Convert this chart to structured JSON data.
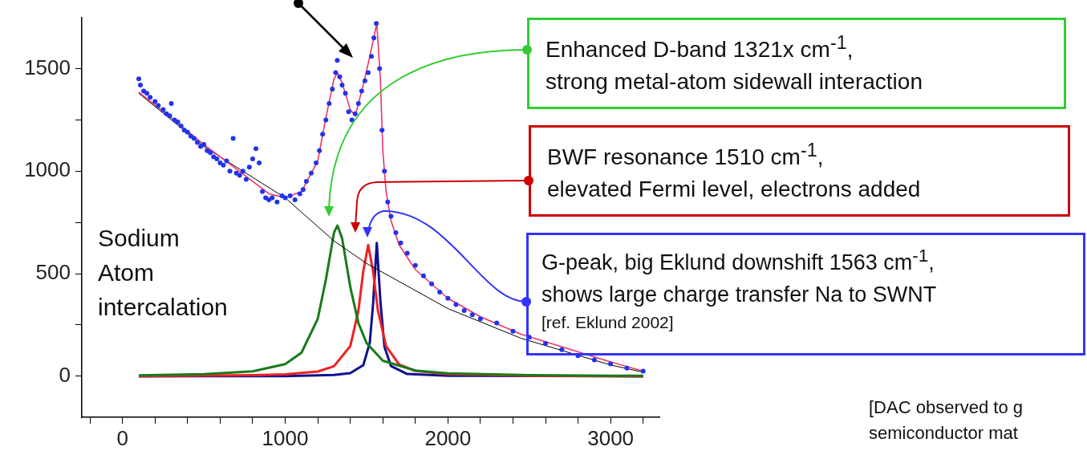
{
  "chart_data": {
    "type": "line",
    "xlim": [
      -250,
      3300
    ],
    "ylim": [
      -200,
      1750
    ],
    "xticks": [
      {
        "value": -200,
        "label": null
      },
      0,
      {
        "value": 200,
        "label": null
      },
      {
        "value": 400,
        "label": null
      },
      {
        "value": 600,
        "label": null
      },
      {
        "value": 800,
        "label": null
      },
      1000,
      {
        "value": 1200,
        "label": null
      },
      {
        "value": 1400,
        "label": null
      },
      {
        "value": 1600,
        "label": null
      },
      {
        "value": 1800,
        "label": null
      },
      2000,
      {
        "value": 2200,
        "label": null
      },
      {
        "value": 2400,
        "label": null
      },
      {
        "value": 2600,
        "label": null
      },
      {
        "value": 2800,
        "label": null
      },
      3000,
      {
        "value": 3200,
        "label": null
      }
    ],
    "yticks": [
      0,
      {
        "value": 250,
        "label": null
      },
      500,
      {
        "value": 750,
        "label": null
      },
      1000,
      {
        "value": 1250,
        "label": null
      },
      1500
    ],
    "grid": false,
    "legend": false,
    "series": [
      {
        "type": "scatter",
        "marker": "circle",
        "color": "#2233ee",
        "x": [
          100,
          110,
          130,
          150,
          170,
          200,
          220,
          250,
          270,
          290,
          300,
          320,
          340,
          360,
          380,
          400,
          420,
          440,
          460,
          480,
          500,
          520,
          540,
          560,
          580,
          600,
          620,
          640,
          660,
          680,
          700,
          720,
          740,
          760,
          780,
          800,
          820,
          840,
          860,
          880,
          900,
          920,
          950,
          980,
          1000,
          1030,
          1060,
          1090,
          1110,
          1130,
          1160,
          1190,
          1210,
          1230,
          1250,
          1270,
          1290,
          1310,
          1320,
          1335,
          1350,
          1370,
          1390,
          1410,
          1430,
          1450,
          1470,
          1490,
          1510,
          1530,
          1545,
          1560,
          1580,
          1595,
          1610,
          1630,
          1650,
          1680,
          1710,
          1750,
          1800,
          1850,
          1900,
          1950,
          2000,
          2050,
          2100,
          2150,
          2200,
          2300,
          2400,
          2500,
          2600,
          2700,
          2800,
          2900,
          3000,
          3100,
          3200
        ],
        "values": [
          1450,
          1420,
          1390,
          1380,
          1360,
          1340,
          1320,
          1300,
          1280,
          1270,
          1330,
          1250,
          1240,
          1220,
          1200,
          1190,
          1170,
          1160,
          1140,
          1120,
          1130,
          1100,
          1090,
          1070,
          1060,
          1040,
          1030,
          1050,
          1000,
          1160,
          990,
          980,
          1000,
          960,
          1020,
          1060,
          1110,
          1040,
          900,
          870,
          860,
          870,
          850,
          880,
          870,
          880,
          860,
          890,
          910,
          950,
          990,
          1040,
          1100,
          1180,
          1250,
          1330,
          1400,
          1480,
          1540,
          1460,
          1420,
          1380,
          1290,
          1250,
          1280,
          1330,
          1390,
          1440,
          1480,
          1560,
          1650,
          1720,
          1500,
          1200,
          1000,
          850,
          780,
          700,
          650,
          600,
          540,
          490,
          450,
          410,
          380,
          350,
          320,
          300,
          280,
          260,
          220,
          190,
          160,
          130,
          100,
          80,
          60,
          40,
          25
        ]
      },
      {
        "type": "line",
        "marker": "none",
        "color": "#ee3366",
        "x": [
          100,
          300,
          500,
          700,
          900,
          1000,
          1100,
          1200,
          1250,
          1300,
          1321,
          1350,
          1400,
          1430,
          1480,
          1520,
          1563,
          1585,
          1600,
          1620,
          1650,
          1700,
          1800,
          2000,
          2200,
          2450,
          3000,
          3200
        ],
        "values": [
          1385,
          1260,
          1130,
          1010,
          890,
          870,
          900,
          1050,
          1260,
          1450,
          1480,
          1430,
          1300,
          1270,
          1420,
          1560,
          1720,
          1450,
          1100,
          900,
          760,
          640,
          520,
          380,
          290,
          205,
          70,
          25
        ]
      },
      {
        "type": "line",
        "marker": "none",
        "color": "#000000",
        "x": [
          100,
          500,
          1000,
          1300,
          1500,
          2000,
          2450,
          3000,
          3200
        ],
        "values": [
          1380,
          1120,
          870,
          660,
          550,
          330,
          185,
          55,
          20
        ]
      },
      {
        "type": "line",
        "marker": "none",
        "color": "#1a7a1a",
        "x": [
          100,
          500,
          800,
          1000,
          1100,
          1200,
          1250,
          1300,
          1321,
          1350,
          1400,
          1450,
          1500,
          1600,
          1800,
          2000,
          2500,
          3200
        ],
        "values": [
          4,
          10,
          24,
          59,
          115,
          280,
          471,
          700,
          735,
          672,
          435,
          259,
          162,
          76,
          28,
          14,
          5,
          2
        ]
      },
      {
        "type": "line",
        "marker": "none",
        "color": "#ee2222",
        "x": [
          100,
          800,
          1000,
          1200,
          1300,
          1400,
          1450,
          1480,
          1510,
          1540,
          1570,
          1620,
          1700,
          1800,
          2000,
          2500,
          3200
        ],
        "values": [
          1,
          5,
          9,
          23,
          49,
          147,
          320,
          512,
          640,
          512,
          320,
          147,
          58,
          26,
          10,
          2,
          0
        ]
      },
      {
        "type": "line",
        "marker": "none",
        "color": "#101090",
        "x": [
          100,
          1000,
          1300,
          1400,
          1480,
          1520,
          1540,
          1563,
          1585,
          1610,
          1650,
          1750,
          2000,
          3200
        ],
        "values": [
          0,
          1,
          6,
          15,
          54,
          164,
          352,
          650,
          367,
          143,
          50,
          11,
          2,
          0
        ]
      }
    ],
    "annotations": [
      "Enhanced D-band 1321x cm$^{-1}$,\nstrong metal-atom sidewall interaction",
      "BWF resonance 1510 cm$^{-1}$,\nelevated Fermi level, electrons added",
      "G-peak, big Eklund downshift 1563 cm$^{-1}$,\nshows large charge transfer Na to SWNT",
      "[ref. Eklund 2002]",
      "Sodium\nAtom\nintercalation",
      "[DAC observed to g\nsemiconductor mat"
    ]
  }
}
